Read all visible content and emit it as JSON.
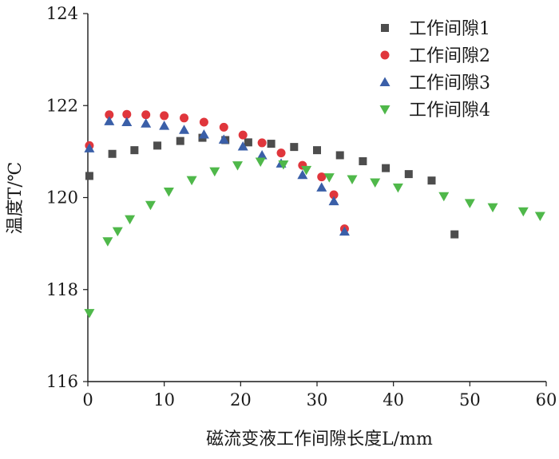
{
  "chart_data": {
    "type": "scatter",
    "xlabel": "磁流变液工作间隙长度L/mm",
    "ylabel": "温度T/℃",
    "xlim": [
      0,
      60
    ],
    "ylim": [
      116,
      124
    ],
    "x_ticks": [
      "0",
      "10",
      "20",
      "30",
      "40",
      "50",
      "60"
    ],
    "y_ticks": [
      "116",
      "118",
      "120",
      "122",
      "124"
    ],
    "grid": false,
    "legend_position": "top-right",
    "series": [
      {
        "name": "工作间隙1",
        "marker": "square",
        "color": "#4d4d4d",
        "points": [
          [
            0.2,
            120.47
          ],
          [
            3.2,
            120.95
          ],
          [
            6.1,
            121.03
          ],
          [
            9.1,
            121.13
          ],
          [
            12.1,
            121.23
          ],
          [
            15.0,
            121.3
          ],
          [
            18.0,
            121.25
          ],
          [
            21.0,
            121.2
          ],
          [
            24.0,
            121.17
          ],
          [
            27.0,
            121.1
          ],
          [
            30.0,
            121.03
          ],
          [
            33.0,
            120.92
          ],
          [
            36.0,
            120.79
          ],
          [
            39.0,
            120.64
          ],
          [
            42.0,
            120.51
          ],
          [
            45.0,
            120.37
          ],
          [
            48.0,
            119.2
          ]
        ]
      },
      {
        "name": "工作间隙2",
        "marker": "circle",
        "color": "#e0363c",
        "points": [
          [
            0.2,
            121.13
          ],
          [
            2.8,
            121.8
          ],
          [
            5.1,
            121.81
          ],
          [
            7.6,
            121.8
          ],
          [
            10.0,
            121.78
          ],
          [
            12.6,
            121.73
          ],
          [
            15.2,
            121.64
          ],
          [
            17.8,
            121.53
          ],
          [
            20.3,
            121.36
          ],
          [
            22.8,
            121.19
          ],
          [
            25.3,
            120.97
          ],
          [
            28.1,
            120.7
          ],
          [
            30.6,
            120.45
          ],
          [
            32.2,
            120.06
          ],
          [
            33.6,
            119.32
          ]
        ]
      },
      {
        "name": "工作间隙3",
        "marker": "triangle-up",
        "color": "#3a5fa8",
        "points": [
          [
            0.2,
            121.07
          ],
          [
            2.8,
            121.66
          ],
          [
            5.1,
            121.64
          ],
          [
            7.6,
            121.61
          ],
          [
            10.0,
            121.56
          ],
          [
            12.6,
            121.47
          ],
          [
            15.2,
            121.37
          ],
          [
            17.8,
            121.26
          ],
          [
            20.3,
            121.11
          ],
          [
            22.8,
            120.92
          ],
          [
            25.3,
            120.74
          ],
          [
            28.1,
            120.49
          ],
          [
            30.6,
            120.22
          ],
          [
            32.2,
            119.92
          ],
          [
            33.6,
            119.26
          ]
        ]
      },
      {
        "name": "工作间隙4",
        "marker": "triangle-down",
        "color": "#4fb84a",
        "points": [
          [
            0.2,
            117.49
          ],
          [
            2.6,
            119.05
          ],
          [
            3.9,
            119.27
          ],
          [
            5.5,
            119.53
          ],
          [
            8.2,
            119.84
          ],
          [
            10.6,
            120.13
          ],
          [
            13.6,
            120.38
          ],
          [
            16.6,
            120.57
          ],
          [
            19.6,
            120.7
          ],
          [
            22.6,
            120.78
          ],
          [
            25.6,
            120.72
          ],
          [
            28.6,
            120.6
          ],
          [
            31.6,
            120.44
          ],
          [
            34.6,
            120.4
          ],
          [
            37.6,
            120.33
          ],
          [
            40.6,
            120.22
          ],
          [
            46.6,
            120.03
          ],
          [
            50.0,
            119.88
          ],
          [
            53.0,
            119.79
          ],
          [
            57.0,
            119.7
          ],
          [
            59.2,
            119.6
          ]
        ]
      }
    ]
  }
}
